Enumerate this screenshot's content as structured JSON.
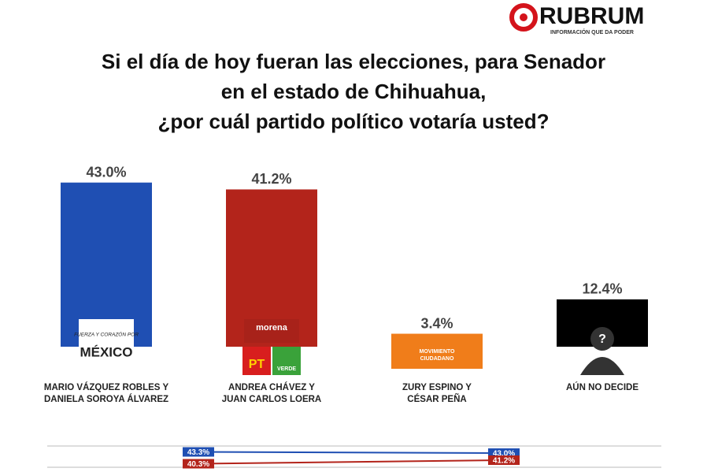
{
  "brand": {
    "name": "RUBRUM",
    "tagline": "INFORMACIÓN QUE DA PODER"
  },
  "chart_data": [
    {
      "type": "bar",
      "title": [
        "Si el día de hoy fueran las elecciones, para Senador",
        "en el estado de Chihuahua,",
        "¿por cuál partido político votaría usted?"
      ],
      "categories": [
        [
          "MARIO VÁZQUEZ ROBLES Y",
          "DANIELA SOROYA ÁLVAREZ"
        ],
        [
          "ANDREA CHÁVEZ Y",
          "JUAN CARLOS LOERA"
        ],
        [
          "ZURY ESPINO Y",
          "CÉSAR PEÑA"
        ],
        [
          "AÚN NO DECIDE"
        ]
      ],
      "values": [
        43.0,
        41.2,
        3.4,
        12.4
      ],
      "value_labels": [
        "43.0%",
        "41.2%",
        "3.4%",
        "12.4%"
      ],
      "colors": [
        "#1f4fb3",
        "#b3241b",
        "#f07d1a",
        "#000000"
      ],
      "logo_labels": [
        [
          "FUERZA Y CORAZÓN POR",
          "MÉXICO"
        ],
        [
          "morena",
          "PT",
          "VERDE"
        ],
        [
          "MOVIMIENTO",
          "CIUDADANO"
        ],
        [
          "?"
        ]
      ],
      "ylim": [
        0,
        45
      ]
    },
    {
      "type": "line",
      "series": [
        {
          "color": "#1f4fb3",
          "values": [
            43.3,
            43.0
          ],
          "value_labels": [
            "43.3%",
            "43.0%"
          ]
        },
        {
          "color": "#b3241b",
          "values": [
            40.3,
            41.2
          ],
          "value_labels": [
            "40.3%",
            "41.2%"
          ]
        }
      ],
      "ylim": [
        38,
        46
      ]
    }
  ]
}
